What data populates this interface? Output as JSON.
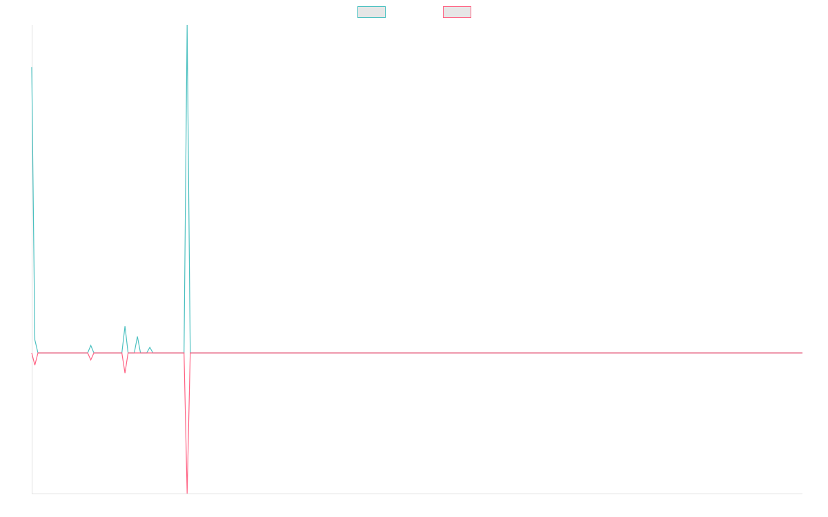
{
  "chart_data": {
    "type": "line",
    "x": [
      0,
      1,
      2,
      18,
      19,
      20,
      29,
      30,
      31,
      33,
      34,
      35,
      37,
      38,
      39,
      49,
      50,
      51,
      248
    ],
    "series": [
      {
        "color": "#4bc0c0",
        "values": [
          6.1,
          0.28,
          0,
          0,
          0.16,
          0,
          0,
          0.57,
          0,
          0,
          0.35,
          0,
          0,
          0.12,
          0,
          0,
          7,
          0,
          0
        ]
      },
      {
        "color": "#ff6384",
        "values": [
          0,
          -0.26,
          0,
          0,
          -0.15,
          0,
          0,
          -0.43,
          0,
          0,
          0,
          0,
          0,
          0,
          0,
          0,
          -3,
          0,
          0
        ]
      }
    ],
    "xlim": [
      0,
      248
    ],
    "ylim": [
      -3,
      7
    ],
    "legend": "top"
  }
}
